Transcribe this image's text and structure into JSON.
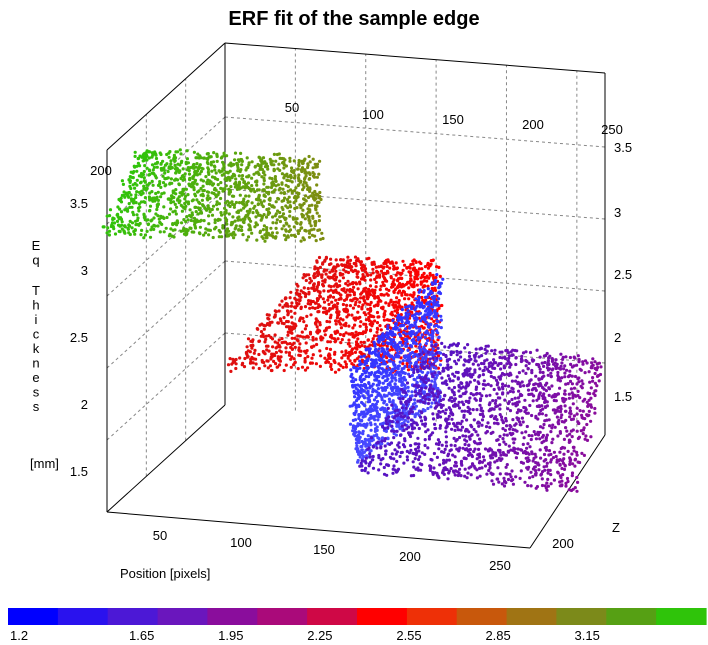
{
  "chart_data": {
    "type": "scatter",
    "projection": "3d",
    "title": "ERF fit of the sample edge",
    "xlabel": "Position [pixels]",
    "ylabel_line1": "Eq Thickness",
    "ylabel_line2": "[mm]",
    "zlabel": "Z",
    "xlim": [
      0,
      250
    ],
    "zlim": [
      1.2,
      3.55
    ],
    "front_x_ticks": [
      "50",
      "100",
      "150",
      "200",
      "250"
    ],
    "top_x_ticks": [
      "50",
      "100",
      "150",
      "200",
      "250"
    ],
    "left_z_ticks": [
      "3.5",
      "3",
      "2.5",
      "2",
      "1.5"
    ],
    "right_z_ticks": [
      "3.5",
      "3",
      "2.5",
      "2",
      "1.5"
    ],
    "depth_tick_left": "200",
    "depth_tick_front": "200",
    "grid": true,
    "colorbar": {
      "colors": [
        "#0000ff",
        "#2a12ee",
        "#4c18d6",
        "#6a16bd",
        "#8a0d9c",
        "#aa0a7a",
        "#cf0846",
        "#ff0000",
        "#ee3007",
        "#c8580c",
        "#a07414",
        "#7c8a1a",
        "#56a014",
        "#2fc40a"
      ],
      "labels": [
        "1.2",
        "1.65",
        "1.95",
        "2.25",
        "2.55",
        "2.85",
        "3.15"
      ],
      "range": [
        1.2,
        3.55
      ]
    },
    "clusters": [
      {
        "name": "",
        "level": 3.4,
        "color_front": "#2fc40a",
        "color_back": "#a07414"
      },
      {
        "name": "",
        "level": 2.55,
        "color_front": "#ff0000",
        "color_back": "#dd1010"
      },
      {
        "name": "",
        "level": 1.2,
        "color_front": "#4a4cff",
        "color_back": "#3030ff"
      },
      {
        "name": "",
        "level": 1.75,
        "color_front": "#8a0d9c",
        "color_back": "#5014c8"
      }
    ]
  }
}
